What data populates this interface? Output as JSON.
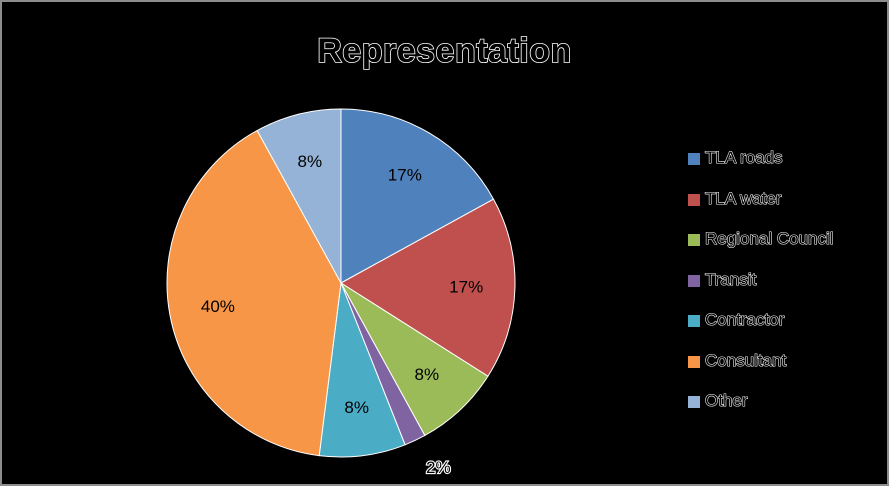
{
  "chart_data": {
    "type": "pie",
    "title": "Representation",
    "legend_position": "right",
    "slices": [
      {
        "name": "TLA roads",
        "value": 17,
        "label": "17%",
        "color": "#4f81bd"
      },
      {
        "name": "TLA water",
        "value": 17,
        "label": "17%",
        "color": "#c0504d"
      },
      {
        "name": "Regional Council",
        "value": 8,
        "label": "8%",
        "color": "#9bbb59"
      },
      {
        "name": "Transit",
        "value": 2,
        "label": "2%",
        "color": "#8064a2"
      },
      {
        "name": "Contractor",
        "value": 8,
        "label": "8%",
        "color": "#4bacc6"
      },
      {
        "name": "Consultant",
        "value": 40,
        "label": "40%",
        "color": "#f79646"
      },
      {
        "name": "Other",
        "value": 8,
        "label": "8%",
        "color": "#95b3d7"
      }
    ]
  }
}
